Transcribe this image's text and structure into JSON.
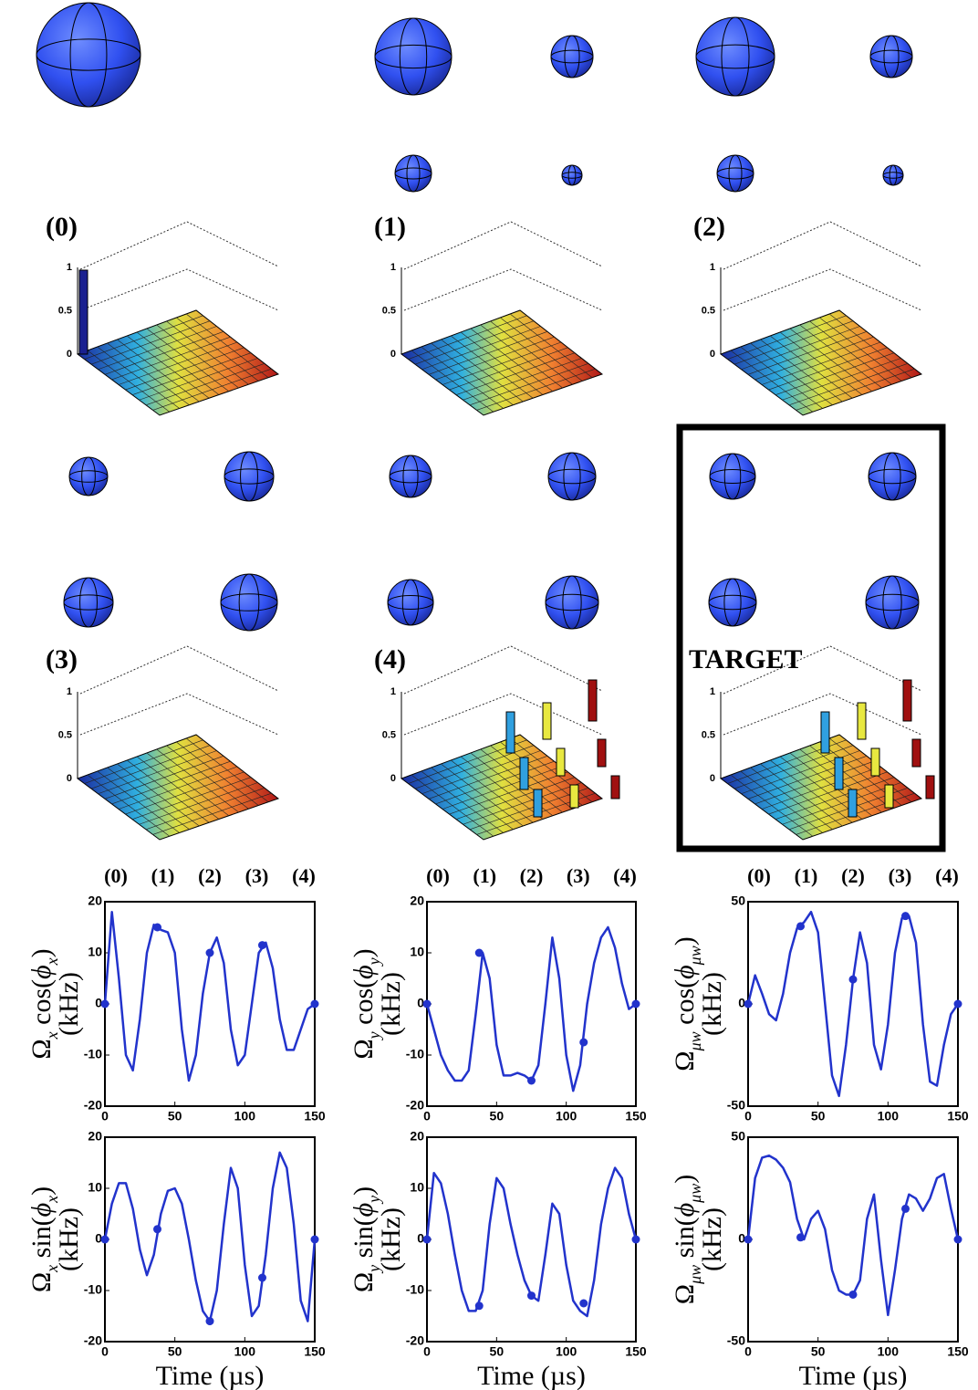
{
  "panels": [
    {
      "label": "(0)"
    },
    {
      "label": "(1)"
    },
    {
      "label": "(2)"
    },
    {
      "label": "(3)"
    },
    {
      "label": "(4)"
    },
    {
      "label": "TARGET"
    }
  ],
  "bar_axis": {
    "zticks": [
      0,
      0.5,
      1
    ]
  },
  "chart_data": [
    {
      "type": "line",
      "ylabel": [
        "Ω",
        "x",
        " cos(",
        "ϕ",
        "x",
        ")"
      ],
      "yunit": "(kHz)",
      "x": [
        0,
        5,
        10,
        15,
        20,
        25,
        30,
        35,
        40,
        45,
        50,
        55,
        60,
        65,
        70,
        75,
        80,
        85,
        90,
        95,
        100,
        105,
        110,
        115,
        120,
        125,
        130,
        135,
        140,
        145,
        150
      ],
      "values": [
        0,
        18,
        5,
        -10,
        -13,
        -3,
        10,
        15.5,
        14.5,
        14,
        10,
        -5,
        -15,
        -10,
        2,
        10,
        13,
        8,
        -5,
        -12,
        -10,
        0,
        10,
        12,
        7,
        -3,
        -9,
        -9,
        -5,
        -1,
        0
      ],
      "marker_x": [
        0,
        37.5,
        75,
        112.5,
        150
      ],
      "marker_values": [
        0,
        15,
        10,
        11.5,
        0
      ],
      "marker_labels": [
        "(0)",
        "(1)",
        "(2)",
        "(3)",
        "(4)"
      ],
      "color": "#2233cc",
      "xlim": [
        0,
        150
      ],
      "ylim": [
        -20,
        20
      ],
      "xticks": [
        0,
        50,
        100,
        150
      ],
      "yticks": [
        -20,
        -10,
        0,
        10,
        20
      ]
    },
    {
      "type": "line",
      "ylabel": [
        "Ω",
        "y",
        " cos(",
        "ϕ",
        "y",
        ")"
      ],
      "yunit": "(kHz)",
      "x": [
        0,
        5,
        10,
        15,
        20,
        25,
        30,
        35,
        40,
        45,
        50,
        55,
        60,
        65,
        70,
        75,
        80,
        85,
        90,
        95,
        100,
        105,
        110,
        115,
        120,
        125,
        130,
        135,
        140,
        145,
        150
      ],
      "values": [
        0,
        -5,
        -10,
        -13,
        -15,
        -15,
        -13,
        -2,
        10,
        5,
        -8,
        -14,
        -14,
        -13.5,
        -14,
        -15,
        -12,
        0,
        13,
        5,
        -10,
        -17,
        -12,
        0,
        8,
        13,
        15,
        11,
        4,
        -1,
        0
      ],
      "marker_x": [
        0,
        37.5,
        75,
        112.5,
        150
      ],
      "marker_values": [
        0,
        10,
        -15,
        -7.5,
        0
      ],
      "marker_labels": [
        "(0)",
        "(1)",
        "(2)",
        "(3)",
        "(4)"
      ],
      "color": "#2233cc",
      "xlim": [
        0,
        150
      ],
      "ylim": [
        -20,
        20
      ],
      "xticks": [
        0,
        50,
        100,
        150
      ],
      "yticks": [
        -20,
        -10,
        0,
        10,
        20
      ]
    },
    {
      "type": "line",
      "ylabel": [
        "Ω",
        "μw",
        " cos(",
        "ϕ",
        "μw",
        ")"
      ],
      "yunit": "(kHz)",
      "x": [
        0,
        5,
        10,
        15,
        20,
        25,
        30,
        35,
        40,
        45,
        50,
        55,
        60,
        65,
        70,
        75,
        80,
        85,
        90,
        95,
        100,
        105,
        110,
        115,
        120,
        125,
        130,
        135,
        140,
        145,
        150
      ],
      "values": [
        0,
        14,
        5,
        -5,
        -8,
        5,
        25,
        37,
        40,
        45,
        35,
        0,
        -35,
        -45,
        -20,
        12,
        35,
        20,
        -20,
        -32,
        -10,
        25,
        42,
        43,
        30,
        -10,
        -38,
        -40,
        -20,
        -5,
        0
      ],
      "marker_x": [
        0,
        37.5,
        75,
        112.5,
        150
      ],
      "marker_values": [
        0,
        38,
        12,
        43,
        0
      ],
      "marker_labels": [
        "(0)",
        "(1)",
        "(2)",
        "(3)",
        "(4)"
      ],
      "color": "#2233cc",
      "xlim": [
        0,
        150
      ],
      "ylim": [
        -50,
        50
      ],
      "xticks": [
        0,
        50,
        100,
        150
      ],
      "yticks": [
        -50,
        0,
        50
      ]
    },
    {
      "type": "line",
      "ylabel": [
        "Ω",
        "x",
        " sin(",
        "ϕ",
        "x",
        ")"
      ],
      "yunit": "(kHz)",
      "xlabel": "Time (µs)",
      "x": [
        0,
        5,
        10,
        15,
        20,
        25,
        30,
        35,
        40,
        45,
        50,
        55,
        60,
        65,
        70,
        75,
        80,
        85,
        90,
        95,
        100,
        105,
        110,
        115,
        120,
        125,
        130,
        135,
        140,
        145,
        150
      ],
      "values": [
        0,
        7,
        11,
        11,
        6,
        -2,
        -7,
        -3,
        5,
        9.5,
        10,
        7,
        0,
        -8,
        -14,
        -16,
        -10,
        3,
        14,
        10,
        -5,
        -15,
        -13,
        -3,
        10,
        17,
        14,
        3,
        -12,
        -16,
        0
      ],
      "marker_x": [
        0,
        37.5,
        75,
        112.5,
        150
      ],
      "marker_values": [
        0,
        2,
        -16,
        -7.5,
        0
      ],
      "color": "#2233cc",
      "xlim": [
        0,
        150
      ],
      "ylim": [
        -20,
        20
      ],
      "xticks": [
        0,
        50,
        100,
        150
      ],
      "yticks": [
        -20,
        -10,
        0,
        10,
        20
      ]
    },
    {
      "type": "line",
      "ylabel": [
        "Ω",
        "y",
        " sin(",
        "ϕ",
        "y",
        ")"
      ],
      "yunit": "(kHz)",
      "xlabel": "Time (µs)",
      "x": [
        0,
        5,
        10,
        15,
        20,
        25,
        30,
        35,
        40,
        45,
        50,
        55,
        60,
        65,
        70,
        75,
        80,
        85,
        90,
        95,
        100,
        105,
        110,
        115,
        120,
        125,
        130,
        135,
        140,
        145,
        150
      ],
      "values": [
        0,
        13,
        11,
        5,
        -3,
        -10,
        -14,
        -14,
        -10,
        3,
        12,
        10,
        3,
        -3,
        -8,
        -11,
        -12,
        -3,
        7,
        5,
        -5,
        -12,
        -14,
        -15,
        -8,
        3,
        10,
        14,
        12,
        5,
        0
      ],
      "marker_x": [
        0,
        37.5,
        75,
        112.5,
        150
      ],
      "marker_values": [
        0,
        -13,
        -11,
        -12.5,
        0
      ],
      "color": "#2233cc",
      "xlim": [
        0,
        150
      ],
      "ylim": [
        -20,
        20
      ],
      "xticks": [
        0,
        50,
        100,
        150
      ],
      "yticks": [
        -20,
        -10,
        0,
        10,
        20
      ]
    },
    {
      "type": "line",
      "ylabel": [
        "Ω",
        "μw",
        " sin(",
        "ϕ",
        "μw",
        ")"
      ],
      "yunit": "(kHz)",
      "xlabel": "Time (µs)",
      "x": [
        0,
        5,
        10,
        15,
        20,
        25,
        30,
        35,
        40,
        45,
        50,
        55,
        60,
        65,
        70,
        75,
        80,
        85,
        90,
        95,
        100,
        105,
        110,
        115,
        120,
        125,
        130,
        135,
        140,
        145,
        150
      ],
      "values": [
        0,
        30,
        40,
        41,
        39,
        35,
        28,
        10,
        0,
        10,
        14,
        5,
        -15,
        -25,
        -27,
        -27,
        -20,
        10,
        22,
        -10,
        -37,
        -15,
        10,
        22,
        20,
        14,
        20,
        30,
        32,
        15,
        0
      ],
      "marker_x": [
        0,
        37.5,
        75,
        112.5,
        150
      ],
      "marker_values": [
        0,
        1,
        -27,
        15,
        0
      ],
      "color": "#2233cc",
      "xlim": [
        0,
        150
      ],
      "ylim": [
        -50,
        50
      ],
      "xticks": [
        0,
        50,
        100,
        150
      ],
      "yticks": [
        -50,
        0,
        50
      ]
    }
  ]
}
